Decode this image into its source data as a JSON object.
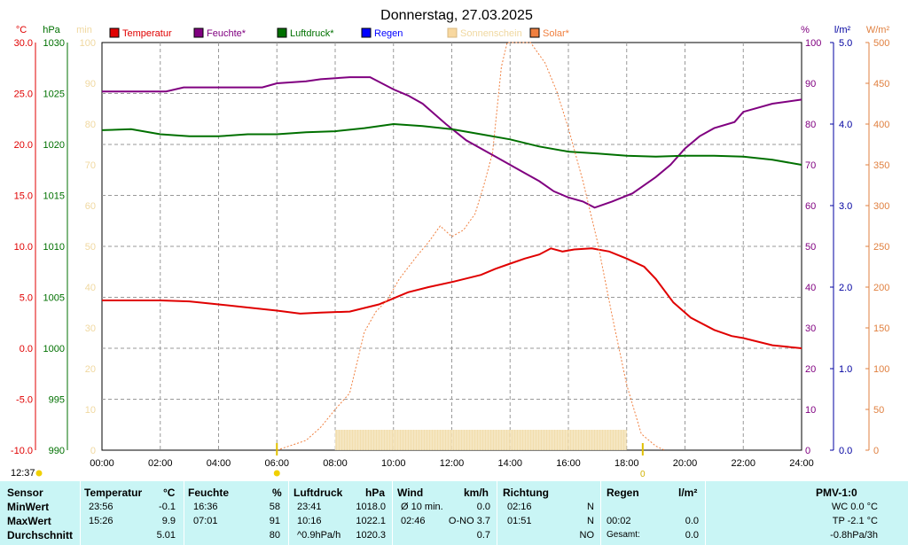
{
  "chart_data": {
    "type": "line",
    "title": "Donnerstag, 27.03.2025",
    "x_ticks": [
      "00:00",
      "02:00",
      "04:00",
      "06:00",
      "08:00",
      "10:00",
      "12:00",
      "14:00",
      "16:00",
      "18:00",
      "20:00",
      "22:00",
      "24:00"
    ],
    "x_range_hours": [
      0,
      24
    ],
    "axes": {
      "temp": {
        "unit": "°C",
        "range": [
          -10,
          30
        ],
        "ticks": [
          "30.0",
          "25.0",
          "20.0",
          "15.0",
          "10.0",
          "5.0",
          "0.0",
          "-5.0",
          "-10.0"
        ],
        "color": "#e00000"
      },
      "pressure": {
        "unit": "hPa",
        "range": [
          990,
          1030
        ],
        "ticks": [
          "1030",
          "1025",
          "1020",
          "1015",
          "1010",
          "1005",
          "1000",
          "995",
          "990"
        ],
        "color": "#007000"
      },
      "minutes": {
        "unit": "min",
        "range": [
          0,
          100
        ],
        "ticks": [
          "100",
          "90",
          "80",
          "70",
          "60",
          "50",
          "40",
          "30",
          "20",
          "10",
          "0"
        ],
        "color": "#f0d8a0"
      },
      "humidity": {
        "unit": "%",
        "range": [
          0,
          100
        ],
        "ticks": [
          "100",
          "90",
          "80",
          "70",
          "60",
          "50",
          "40",
          "30",
          "20",
          "10",
          "0"
        ],
        "color": "#800080"
      },
      "rain": {
        "unit": "l/m²",
        "range": [
          0,
          5
        ],
        "ticks": [
          "5.0",
          "4.0",
          "3.0",
          "2.0",
          "1.0",
          "0.0"
        ],
        "color": "#0000a0"
      },
      "solar": {
        "unit": "W/m²",
        "range": [
          0,
          500
        ],
        "ticks": [
          "500",
          "450",
          "400",
          "350",
          "300",
          "250",
          "200",
          "150",
          "100",
          "50",
          "0"
        ],
        "color": "#e08040"
      }
    },
    "legend": [
      {
        "name": "Temperatur",
        "color": "#e00000"
      },
      {
        "name": "Feuchte*",
        "color": "#800080"
      },
      {
        "name": "Luftdruck*",
        "color": "#007000"
      },
      {
        "name": "Regen",
        "color": "#0000ff"
      },
      {
        "name": "Sonnenschein",
        "color": "#f8d8a0"
      },
      {
        "name": "Solar*",
        "color": "#f08040"
      }
    ],
    "series": [
      {
        "name": "Temperatur",
        "axis": "temp",
        "color": "#e00000",
        "points": [
          [
            0,
            4.7
          ],
          [
            1,
            4.7
          ],
          [
            2,
            4.7
          ],
          [
            3,
            4.6
          ],
          [
            4,
            4.3
          ],
          [
            5,
            4.0
          ],
          [
            6,
            3.7
          ],
          [
            6.8,
            3.4
          ],
          [
            7.5,
            3.5
          ],
          [
            8.5,
            3.6
          ],
          [
            9.5,
            4.3
          ],
          [
            10.5,
            5.5
          ],
          [
            11.2,
            6.0
          ],
          [
            12,
            6.5
          ],
          [
            13,
            7.2
          ],
          [
            13.5,
            7.8
          ],
          [
            14,
            8.3
          ],
          [
            14.5,
            8.8
          ],
          [
            15,
            9.2
          ],
          [
            15.4,
            9.8
          ],
          [
            15.8,
            9.5
          ],
          [
            16.2,
            9.7
          ],
          [
            16.8,
            9.8
          ],
          [
            17.4,
            9.5
          ],
          [
            18,
            8.8
          ],
          [
            18.6,
            8.0
          ],
          [
            19,
            6.8
          ],
          [
            19.6,
            4.5
          ],
          [
            20.2,
            3.0
          ],
          [
            21,
            1.8
          ],
          [
            21.6,
            1.2
          ],
          [
            22,
            1.0
          ],
          [
            23,
            0.3
          ],
          [
            24,
            0.0
          ]
        ]
      },
      {
        "name": "Feuchte*",
        "axis": "humidity",
        "color": "#800080",
        "points": [
          [
            0,
            88
          ],
          [
            2.2,
            88
          ],
          [
            2.8,
            89
          ],
          [
            4,
            89
          ],
          [
            5.5,
            89
          ],
          [
            6,
            90
          ],
          [
            7,
            90.5
          ],
          [
            7.5,
            91
          ],
          [
            8.5,
            91.5
          ],
          [
            9.2,
            91.5
          ],
          [
            10,
            88.5
          ],
          [
            10.5,
            87
          ],
          [
            11,
            85
          ],
          [
            11.8,
            80
          ],
          [
            12.5,
            76
          ],
          [
            13.5,
            72
          ],
          [
            14.5,
            68
          ],
          [
            15,
            66
          ],
          [
            15.5,
            63.5
          ],
          [
            16,
            62
          ],
          [
            16.5,
            61
          ],
          [
            16.9,
            59.5
          ],
          [
            17.5,
            61
          ],
          [
            18.2,
            63
          ],
          [
            18.5,
            64.5
          ],
          [
            19,
            67
          ],
          [
            19.5,
            70
          ],
          [
            20,
            74
          ],
          [
            20.5,
            77
          ],
          [
            21,
            79
          ],
          [
            21.7,
            80.5
          ],
          [
            22,
            83
          ],
          [
            23,
            85
          ],
          [
            24,
            86
          ]
        ]
      },
      {
        "name": "Luftdruck*",
        "axis": "pressure",
        "color": "#007000",
        "points": [
          [
            0,
            1021.4
          ],
          [
            1,
            1021.5
          ],
          [
            2,
            1021.0
          ],
          [
            3,
            1020.8
          ],
          [
            4,
            1020.8
          ],
          [
            5,
            1021.0
          ],
          [
            6,
            1021.0
          ],
          [
            7,
            1021.2
          ],
          [
            8,
            1021.3
          ],
          [
            9,
            1021.6
          ],
          [
            10,
            1022.0
          ],
          [
            11,
            1021.8
          ],
          [
            12,
            1021.5
          ],
          [
            13,
            1021.0
          ],
          [
            14,
            1020.5
          ],
          [
            15,
            1019.8
          ],
          [
            16,
            1019.3
          ],
          [
            17,
            1019.1
          ],
          [
            18,
            1018.9
          ],
          [
            19,
            1018.8
          ],
          [
            20,
            1018.9
          ],
          [
            21,
            1018.9
          ],
          [
            22,
            1018.8
          ],
          [
            23,
            1018.5
          ],
          [
            24,
            1018.0
          ]
        ]
      },
      {
        "name": "Solar*",
        "axis": "solar",
        "color": "#f08040",
        "points": [
          [
            6,
            0
          ],
          [
            7,
            12
          ],
          [
            7.5,
            28
          ],
          [
            8,
            50
          ],
          [
            8.5,
            70
          ],
          [
            9,
            145
          ],
          [
            9.4,
            170
          ],
          [
            9.8,
            185
          ],
          [
            10.2,
            210
          ],
          [
            10.8,
            238
          ],
          [
            11.2,
            255
          ],
          [
            11.6,
            275
          ],
          [
            12,
            262
          ],
          [
            12.4,
            270
          ],
          [
            12.8,
            290
          ],
          [
            13.1,
            325
          ],
          [
            13.4,
            365
          ],
          [
            13.7,
            470
          ],
          [
            13.9,
            500
          ],
          [
            14.3,
            500
          ],
          [
            14.7,
            500
          ],
          [
            15.2,
            475
          ],
          [
            15.6,
            440
          ],
          [
            16,
            395
          ],
          [
            16.5,
            330
          ],
          [
            17,
            255
          ],
          [
            17.5,
            165
          ],
          [
            18,
            80
          ],
          [
            18.5,
            20
          ],
          [
            19,
            5
          ],
          [
            19.3,
            0
          ]
        ]
      }
    ],
    "sunshine_bars": {
      "axis": "minutes",
      "start_hour": 8.0,
      "end_hour": 18.0,
      "value": 5
    },
    "markers": [
      {
        "label": "12:37"
      },
      {
        "label": "0"
      }
    ],
    "grid": true
  },
  "stats": {
    "headers": {
      "sensor": "Sensor",
      "temp": "Temperatur",
      "temp_unit": "°C",
      "feuchte": "Feuchte",
      "feuchte_unit": "%",
      "druck": "Luftdruck",
      "druck_unit": "hPa",
      "wind": "Wind",
      "wind_unit": "km/h",
      "richtung": "Richtung",
      "regen": "Regen",
      "regen_unit": "l/m²",
      "pmv": "PMV-1:0"
    },
    "rows": [
      {
        "label": "MinWert",
        "temp_time": "23:56",
        "temp_val": "-0.1",
        "hum_time": "16:36",
        "hum_val": "58",
        "press_time": "23:41",
        "press_val": "1018.0",
        "wind_label": "Ø 10 min.",
        "wind_val": "0.0",
        "dir_time": "02:16",
        "dir_val": "N",
        "rain_time": "",
        "rain_val": "",
        "pmv": "WC 0.0 °C"
      },
      {
        "label": "MaxWert",
        "temp_time": "15:26",
        "temp_val": "9.9",
        "hum_time": "07:01",
        "hum_val": "91",
        "press_time": "10:16",
        "press_val": "1022.1",
        "wind_label": "02:46",
        "wind_val": "O-NO 3.7",
        "dir_time": "01:51",
        "dir_val": "N",
        "rain_time": "00:02",
        "rain_val": "0.0",
        "pmv": "TP -2.1 °C"
      },
      {
        "label": "Durchschnitt",
        "temp_time": "",
        "temp_val": "5.01",
        "hum_time": "",
        "hum_val": "80",
        "press_time": "^0.9hPa/h",
        "press_val": "1020.3",
        "wind_label": "",
        "wind_val": "0.7",
        "dir_time": "",
        "dir_val": "NO",
        "rain_time": "Gesamt:",
        "rain_val": "0.0",
        "pmv": "-0.8hPa/3h"
      }
    ]
  }
}
